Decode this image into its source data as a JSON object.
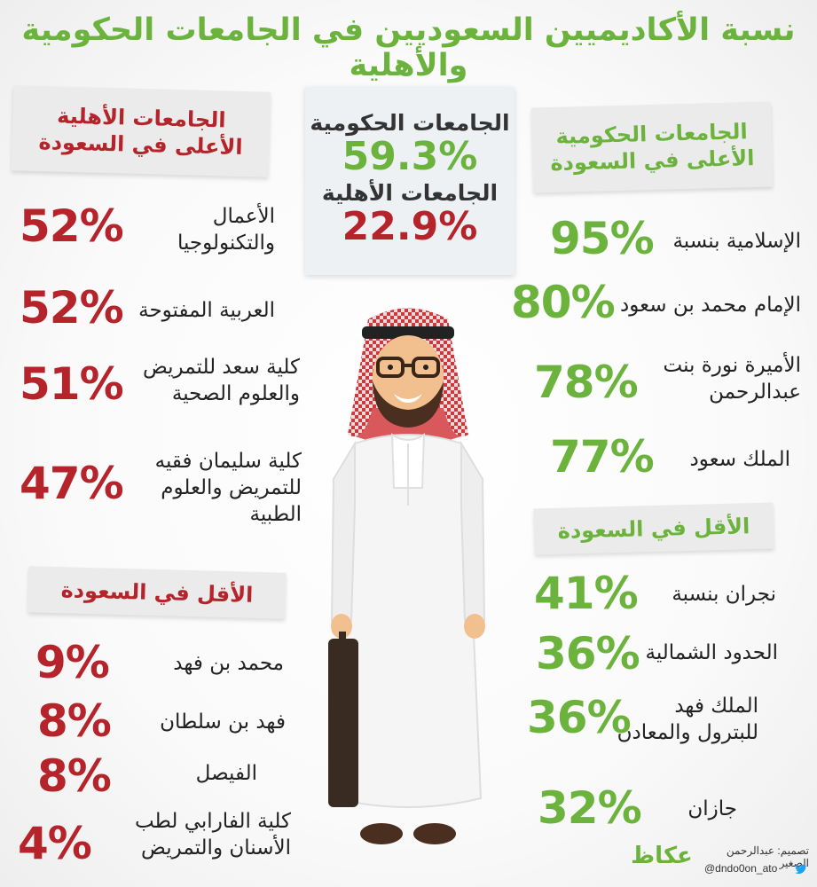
{
  "title": "نسبة الأكاديميين السعوديين في الجامعات الحكومية والأهلية",
  "summary": {
    "gov_label": "الجامعات الحكومية",
    "gov_value": "59.3%",
    "private_label": "الجامعات الأهلية",
    "private_value": "22.9%"
  },
  "gov_top": {
    "heading_line1": "الجامعات الحكومية",
    "heading_line2": "الأعلى في السعودة",
    "items": [
      {
        "name": "الإسلامية بنسبة",
        "value": "95%"
      },
      {
        "name": "الإمام محمد بن سعود",
        "value": "80%"
      },
      {
        "name": "الأميرة نورة بنت عبدالرحمن",
        "value": "78%"
      },
      {
        "name": "الملك سعود",
        "value": "77%"
      }
    ]
  },
  "gov_bottom": {
    "heading": "الأقل في السعودة",
    "items": [
      {
        "name": "نجران بنسبة",
        "value": "41%"
      },
      {
        "name": "الحدود الشمالية",
        "value": "36%"
      },
      {
        "name": "الملك فهد للبترول والمعادن",
        "value": "36%"
      },
      {
        "name": "جازان",
        "value": "32%"
      }
    ]
  },
  "private_top": {
    "heading_line1": "الجامعات الأهلية",
    "heading_line2": "الأعلى في السعودة",
    "items": [
      {
        "name": "الأعمال والتكنولوجيا",
        "value": "52%"
      },
      {
        "name": "العربية المفتوحة",
        "value": "52%"
      },
      {
        "name": "كلية سعد للتمريض والعلوم الصحية",
        "value": "51%"
      },
      {
        "name": "كلية سليمان فقيه للتمريض والعلوم الطبية",
        "value": "47%"
      }
    ]
  },
  "private_bottom": {
    "heading": "الأقل في السعودة",
    "items": [
      {
        "name": "محمد بن فهد",
        "value": "9%"
      },
      {
        "name": "فهد بن سلطان",
        "value": "8%"
      },
      {
        "name": "الفيصل",
        "value": "8%"
      },
      {
        "name": "كلية الفارابي لطب الأسنان والتمريض",
        "value": "4%"
      }
    ]
  },
  "credit": {
    "designer": "تصميم: عبدالرحمن الصغير",
    "handle": "@dndo0on_ato",
    "logo_text": "عكاظ"
  },
  "colors": {
    "green": "#6cb33e",
    "red": "#b5242a",
    "banner": "#ebebeb"
  },
  "icons": [
    "twitter-bird-icon",
    "okaz-logo",
    "saudi-man-illustration"
  ]
}
